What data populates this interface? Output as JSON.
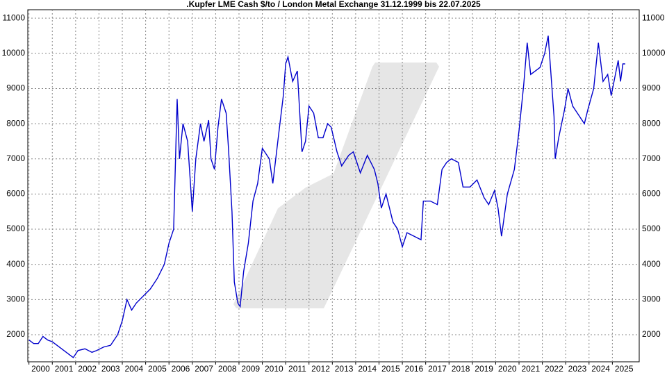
{
  "chart_data": {
    "type": "line",
    "title": ".Kupfer LME Cash $/to / London Metal Exchange 31.12.1999 bis 22.07.2025",
    "x": [
      2000.0,
      2000.2,
      2000.4,
      2000.6,
      2000.8,
      2001.0,
      2001.2,
      2001.5,
      2001.8,
      2001.9,
      2002.1,
      2002.4,
      2002.7,
      2002.9,
      2003.2,
      2003.5,
      2003.8,
      2004.0,
      2004.2,
      2004.4,
      2004.6,
      2004.9,
      2005.2,
      2005.5,
      2005.8,
      2006.0,
      2006.2,
      2006.35,
      2006.45,
      2006.6,
      2006.8,
      2007.0,
      2007.15,
      2007.35,
      2007.5,
      2007.7,
      2007.8,
      2007.95,
      2008.1,
      2008.25,
      2008.45,
      2008.55,
      2008.7,
      2008.8,
      2008.95,
      2009.05,
      2009.2,
      2009.4,
      2009.6,
      2009.8,
      2010.0,
      2010.3,
      2010.45,
      2010.7,
      2010.9,
      2011.0,
      2011.1,
      2011.3,
      2011.5,
      2011.7,
      2011.85,
      2012.0,
      2012.2,
      2012.4,
      2012.6,
      2012.8,
      2012.95,
      2013.2,
      2013.4,
      2013.7,
      2013.9,
      2014.2,
      2014.5,
      2014.8,
      2014.95,
      2015.1,
      2015.3,
      2015.6,
      2015.8,
      2016.0,
      2016.2,
      2016.5,
      2016.8,
      2016.9,
      2017.2,
      2017.5,
      2017.7,
      2017.9,
      2018.1,
      2018.4,
      2018.6,
      2018.9,
      2019.2,
      2019.5,
      2019.7,
      2019.95,
      2020.1,
      2020.25,
      2020.5,
      2020.8,
      2021.0,
      2021.2,
      2021.35,
      2021.5,
      2021.7,
      2021.9,
      2022.1,
      2022.25,
      2022.5,
      2022.55,
      2022.7,
      2022.95,
      2023.1,
      2023.3,
      2023.5,
      2023.8,
      2023.95,
      2024.2,
      2024.4,
      2024.6,
      2024.8,
      2024.95,
      2025.1,
      2025.25,
      2025.35,
      2025.45,
      2025.55
    ],
    "series": [
      {
        "color": "#0000cc",
        "values": [
          1850,
          1750,
          1750,
          1950,
          1850,
          1800,
          1700,
          1550,
          1400,
          1350,
          1550,
          1600,
          1500,
          1550,
          1650,
          1700,
          2000,
          2400,
          3000,
          2700,
          2900,
          3100,
          3300,
          3600,
          4000,
          4600,
          5000,
          8700,
          7000,
          8000,
          7500,
          5500,
          7000,
          8000,
          7500,
          8100,
          7000,
          6700,
          7900,
          8700,
          8300,
          7300,
          5500,
          3500,
          2900,
          2800,
          3800,
          4600,
          5800,
          6300,
          7300,
          7000,
          6300,
          7700,
          8800,
          9700,
          9900,
          9200,
          9500,
          7200,
          7500,
          8500,
          8300,
          7600,
          7600,
          8000,
          7900,
          7200,
          6800,
          7100,
          7200,
          6600,
          7100,
          6700,
          6300,
          5600,
          6000,
          5200,
          5000,
          4500,
          4900,
          4800,
          4700,
          5800,
          5800,
          5700,
          6700,
          6900,
          7000,
          6900,
          6200,
          6200,
          6400,
          5900,
          5700,
          6100,
          5600,
          4800,
          6000,
          6700,
          7800,
          9100,
          10300,
          9400,
          9500,
          9600,
          10000,
          10500,
          8200,
          7000,
          7600,
          8400,
          9000,
          8500,
          8300,
          8000,
          8400,
          9000,
          10300,
          9200,
          9400,
          8800,
          9300,
          9800,
          9200,
          9700,
          9700
        ]
      }
    ],
    "xlim": [
      1999.95,
      2026.15
    ],
    "xticks": [
      {
        "value": 2000,
        "label": "2000"
      },
      {
        "value": 2001,
        "label": "2001"
      },
      {
        "value": 2002,
        "label": "2002"
      },
      {
        "value": 2003,
        "label": "2003"
      },
      {
        "value": 2004,
        "label": "2004"
      },
      {
        "value": 2005,
        "label": "2005"
      },
      {
        "value": 2006,
        "label": "2006"
      },
      {
        "value": 2007,
        "label": "2007"
      },
      {
        "value": 2008,
        "label": "2008"
      },
      {
        "value": 2009,
        "label": "2009"
      },
      {
        "value": 2010,
        "label": "2010"
      },
      {
        "value": 2011,
        "label": "2011"
      },
      {
        "value": 2012,
        "label": "2012"
      },
      {
        "value": 2013,
        "label": "2013"
      },
      {
        "value": 2014,
        "label": "2014"
      },
      {
        "value": 2015,
        "label": "2015"
      },
      {
        "value": 2016,
        "label": "2016"
      },
      {
        "value": 2017,
        "label": "2017"
      },
      {
        "value": 2018,
        "label": "2018"
      },
      {
        "value": 2019,
        "label": "2019"
      },
      {
        "value": 2020,
        "label": "2020"
      },
      {
        "value": 2021,
        "label": "2021"
      },
      {
        "value": 2022,
        "label": "2022"
      },
      {
        "value": 2023,
        "label": "2023"
      },
      {
        "value": 2024,
        "label": "2024"
      },
      {
        "value": 2025,
        "label": "2025"
      }
    ],
    "ylim": [
      1230,
      11240
    ],
    "yticks": [
      2000,
      3000,
      4000,
      5000,
      6000,
      7000,
      8000,
      9000,
      10000,
      11000
    ],
    "grid": true
  }
}
